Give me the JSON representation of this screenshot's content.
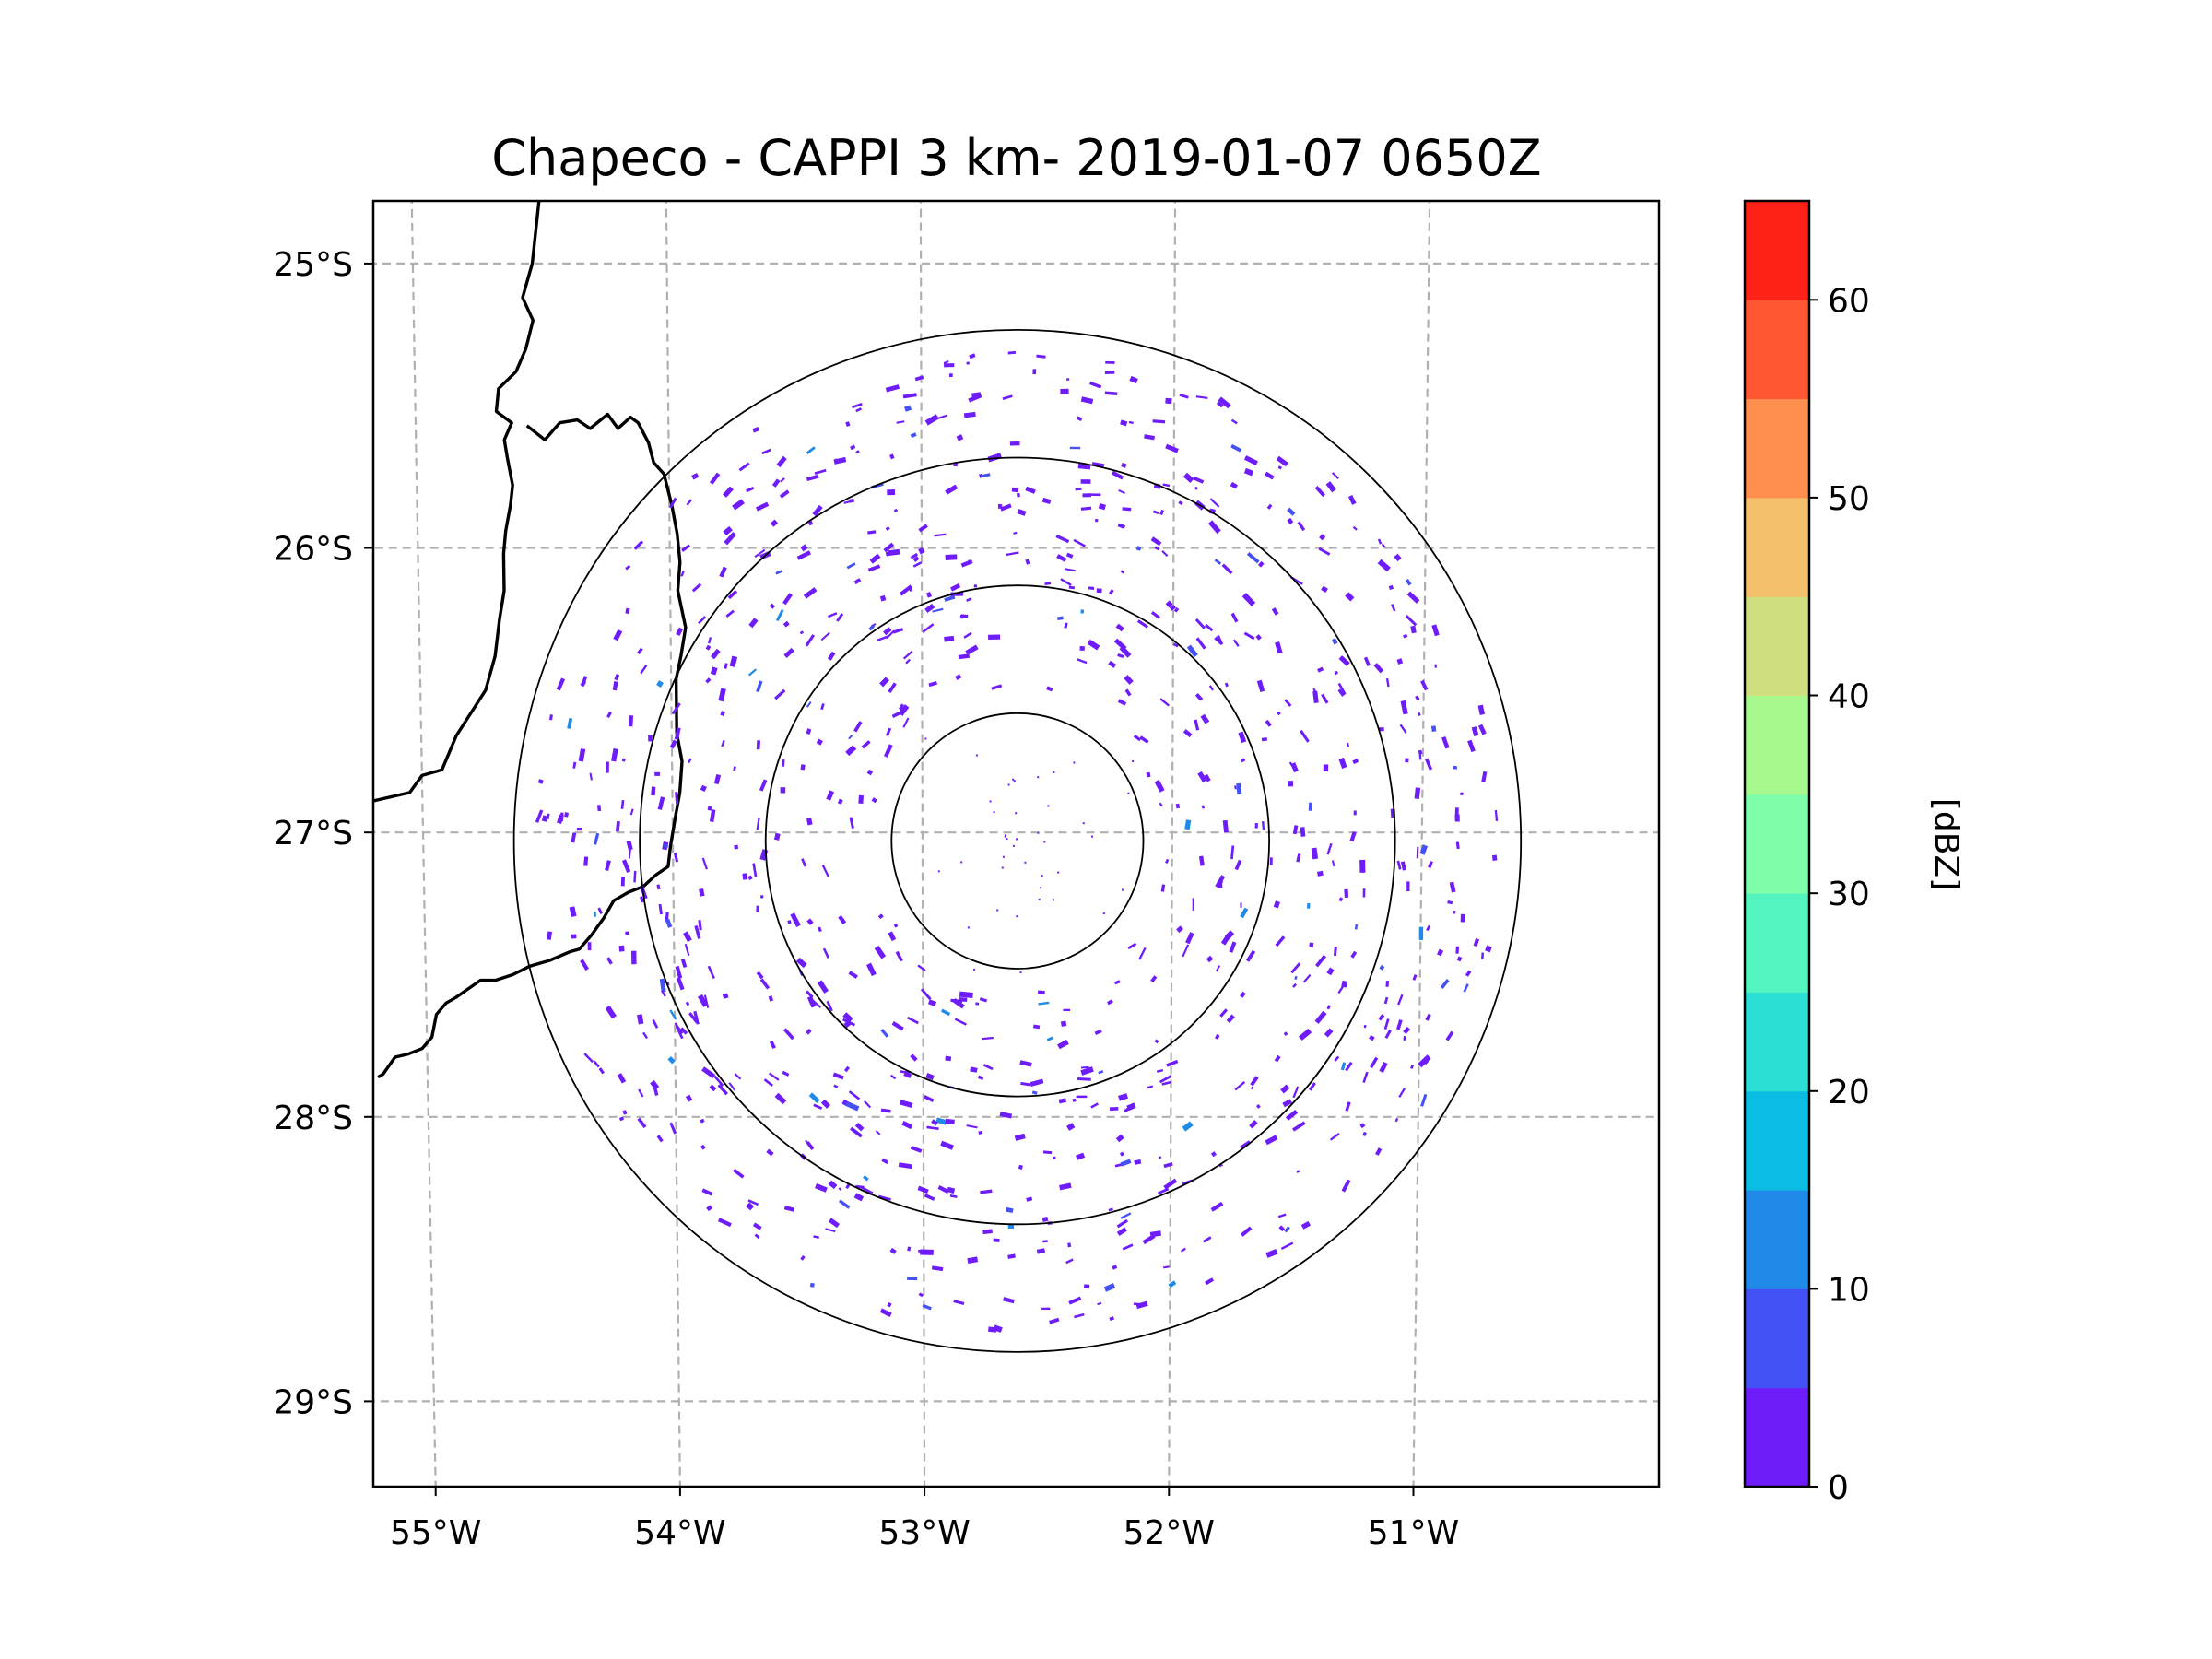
{
  "title": "Chapeco - CAPPI 3 km- 2019-01-07 0650Z",
  "chart_data": {
    "type": "map-radar",
    "title": "Chapeco - CAPPI 3 km- 2019-01-07 0650Z",
    "lon_range": [
      -55.2,
      -50.05
    ],
    "lat_range": [
      -29.3,
      -24.78
    ],
    "radar_center": {
      "lon": -52.62,
      "lat": -27.03
    },
    "range_rings_km": [
      50,
      100,
      150,
      200
    ],
    "x_ticks": [
      {
        "value": -55,
        "label": "55°W"
      },
      {
        "value": -54,
        "label": "54°W"
      },
      {
        "value": -53,
        "label": "53°W"
      },
      {
        "value": -52,
        "label": "52°W"
      },
      {
        "value": -51,
        "label": "51°W"
      }
    ],
    "y_ticks": [
      {
        "value": -25,
        "label": "25°S"
      },
      {
        "value": -26,
        "label": "26°S"
      },
      {
        "value": -27,
        "label": "27°S"
      },
      {
        "value": -28,
        "label": "28°S"
      },
      {
        "value": -29,
        "label": "29°S"
      }
    ],
    "gridlines": true,
    "borders": [
      {
        "name": "outer-border",
        "points": [
          [
            -54.5,
            -24.78
          ],
          [
            -54.53,
            -25.0
          ],
          [
            -54.57,
            -25.12
          ],
          [
            -54.53,
            -25.2
          ],
          [
            -54.56,
            -25.3
          ],
          [
            -54.6,
            -25.38
          ],
          [
            -54.67,
            -25.44
          ],
          [
            -54.68,
            -25.52
          ],
          [
            -54.62,
            -25.56
          ],
          [
            -54.65,
            -25.62
          ],
          [
            -54.64,
            -25.68
          ],
          [
            -54.62,
            -25.78
          ],
          [
            -54.63,
            -25.85
          ],
          [
            -54.65,
            -25.94
          ],
          [
            -54.66,
            -26.02
          ],
          [
            -54.66,
            -26.15
          ],
          [
            -54.68,
            -26.25
          ],
          [
            -54.7,
            -26.38
          ],
          [
            -54.74,
            -26.5
          ],
          [
            -54.8,
            -26.58
          ],
          [
            -54.86,
            -26.66
          ],
          [
            -54.92,
            -26.78
          ],
          [
            -55.0,
            -26.8
          ],
          [
            -55.05,
            -26.86
          ],
          [
            -55.2,
            -26.89
          ]
        ]
      },
      {
        "name": "inner-border",
        "points": [
          [
            -54.56,
            -25.57
          ],
          [
            -54.49,
            -25.62
          ],
          [
            -54.43,
            -25.56
          ],
          [
            -54.36,
            -25.55
          ],
          [
            -54.31,
            -25.58
          ],
          [
            -54.24,
            -25.53
          ],
          [
            -54.2,
            -25.58
          ],
          [
            -54.15,
            -25.54
          ],
          [
            -54.12,
            -25.56
          ],
          [
            -54.08,
            -25.63
          ],
          [
            -54.06,
            -25.7
          ],
          [
            -54.02,
            -25.74
          ],
          [
            -53.99,
            -25.85
          ],
          [
            -53.97,
            -25.95
          ],
          [
            -53.96,
            -26.05
          ],
          [
            -53.97,
            -26.15
          ],
          [
            -53.94,
            -26.28
          ],
          [
            -53.96,
            -26.38
          ],
          [
            -53.98,
            -26.46
          ],
          [
            -53.98,
            -26.55
          ],
          [
            -53.98,
            -26.65
          ],
          [
            -53.96,
            -26.75
          ],
          [
            -53.97,
            -26.86
          ],
          [
            -53.99,
            -26.95
          ],
          [
            -54.01,
            -27.05
          ],
          [
            -54.02,
            -27.12
          ],
          [
            -54.07,
            -27.15
          ],
          [
            -54.12,
            -27.19
          ],
          [
            -54.18,
            -27.21
          ],
          [
            -54.24,
            -27.24
          ],
          [
            -54.28,
            -27.3
          ],
          [
            -54.33,
            -27.36
          ],
          [
            -54.38,
            -27.41
          ],
          [
            -54.42,
            -27.42
          ],
          [
            -54.5,
            -27.45
          ],
          [
            -54.58,
            -27.47
          ],
          [
            -54.65,
            -27.5
          ],
          [
            -54.72,
            -27.52
          ],
          [
            -54.78,
            -27.52
          ],
          [
            -54.83,
            -27.55
          ],
          [
            -54.88,
            -27.58
          ],
          [
            -54.92,
            -27.6
          ],
          [
            -54.96,
            -27.64
          ],
          [
            -54.98,
            -27.72
          ],
          [
            -55.02,
            -27.76
          ],
          [
            -55.08,
            -27.78
          ],
          [
            -55.13,
            -27.79
          ],
          [
            -55.18,
            -27.85
          ],
          [
            -55.2,
            -27.86
          ]
        ]
      }
    ],
    "colorbar": {
      "label": "[dBZ]",
      "vmin": 0,
      "vmax": 65,
      "step": 5,
      "tick_labels": [
        "0",
        "10",
        "20",
        "30",
        "40",
        "50",
        "60"
      ],
      "colors": [
        "#6e1dfa",
        "#4452f5",
        "#1f8ae8",
        "#0bbde3",
        "#2bdfd4",
        "#53f4bf",
        "#7efeaa",
        "#a8f98d",
        "#cfdf7f",
        "#f4c06c",
        "#ff8f4e",
        "#fe5732",
        "#fd2118"
      ]
    },
    "echo_field": {
      "description": "scattered weak echoes",
      "typical_dbz": [
        0,
        5
      ],
      "max_dbz": 15,
      "seed": 20190107
    }
  }
}
